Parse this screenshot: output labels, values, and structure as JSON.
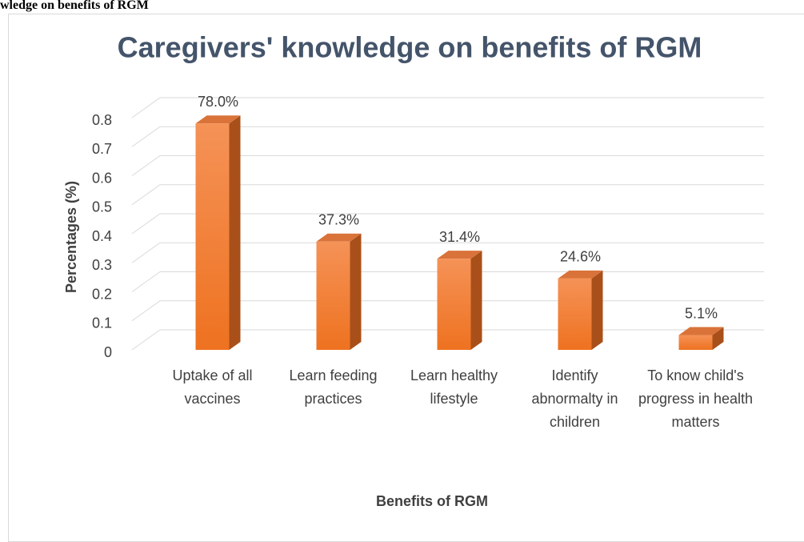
{
  "page_caption": "wledge on benefits of RGM",
  "chart_data": {
    "type": "bar3d",
    "title": "Caregivers' knowledge on benefits of RGM",
    "x_label": "Benefits of RGM",
    "y_label": "Percentages (%)",
    "categories": [
      "Uptake of all vaccines",
      "Learn feeding practices",
      "Learn healthy lifestyle",
      "Identify abnormalty in children",
      "To know child's progress in health matters"
    ],
    "values": [
      0.78,
      0.373,
      0.314,
      0.246,
      0.051
    ],
    "value_labels": [
      "78.0%",
      "37.3%",
      "31.4%",
      "24.6%",
      "5.1%"
    ],
    "color": "#f07a22",
    "ylim": [
      0,
      0.8
    ],
    "yticks": [
      0,
      0.1,
      0.2,
      0.3,
      0.4,
      0.5,
      0.6,
      0.7,
      0.8
    ],
    "grid": true
  }
}
